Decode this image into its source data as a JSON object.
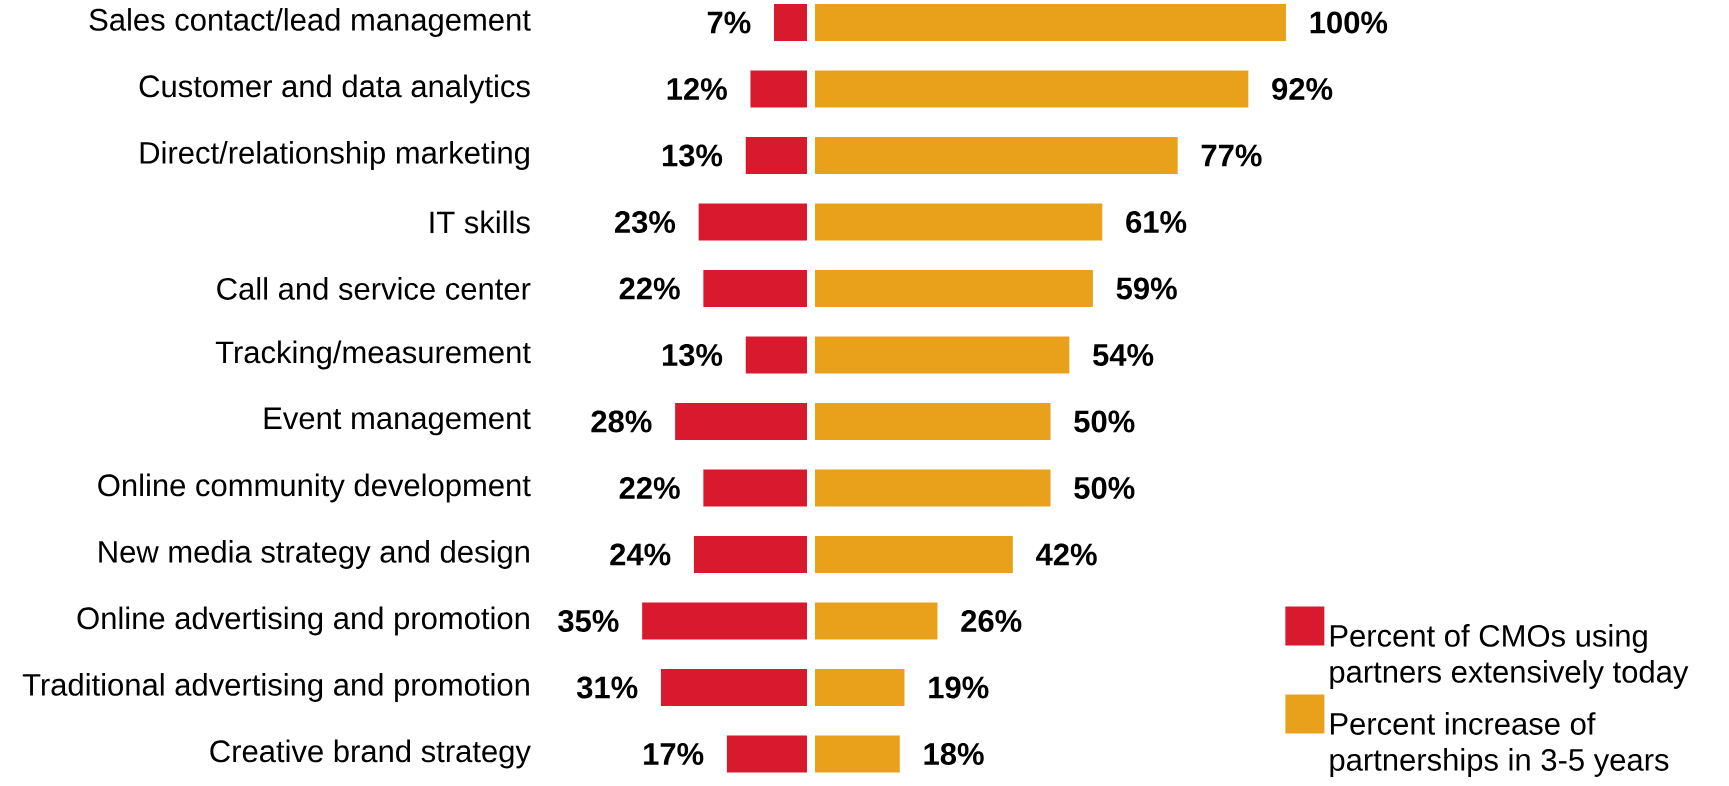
{
  "chart_data": [
    {
      "type": "bar",
      "orientation": "horizontal",
      "categories": [
        "Sales contact/lead management",
        "Customer and data analytics",
        "Direct/relationship marketing",
        "IT skills",
        "Call and service center",
        "Tracking/measurement",
        "Event management",
        "Online community development",
        "New media strategy and design",
        "Online advertising and promotion",
        "Traditional advertising and promotion",
        "Creative brand strategy"
      ],
      "tick_labels": "y",
      "legend": "bottom right",
      "series": [
        {
          "name": "Percent of CMOs using partners extensively today",
          "color": "#d91a2e",
          "values": [
            7,
            12,
            13,
            23,
            22,
            13,
            28,
            22,
            24,
            35,
            31,
            17
          ],
          "value_labels": [
            "7%",
            "12%",
            "13%",
            "23%",
            "22%",
            "13%",
            "28%",
            "22%",
            "24%",
            "35%",
            "31%",
            "17%"
          ]
        }
      ]
    },
    {
      "type": "bar",
      "orientation": "horizontal",
      "categories": [
        null,
        null,
        null,
        null,
        null,
        null,
        null,
        null,
        null,
        null,
        null,
        null
      ],
      "tick_labels": false,
      "legend": "bottom right",
      "series": [
        {
          "name": "Percent increase of partnerships in 3-5 years",
          "color": "#e9a11c",
          "values": [
            100,
            92,
            77,
            61,
            59,
            54,
            50,
            50,
            42,
            26,
            19,
            18
          ],
          "value_labels": [
            "100%",
            "92%",
            "77%",
            "61%",
            "59%",
            "54%",
            "50%",
            "50%",
            "42%",
            "26%",
            "19%",
            "18%"
          ]
        }
      ]
    }
  ]
}
